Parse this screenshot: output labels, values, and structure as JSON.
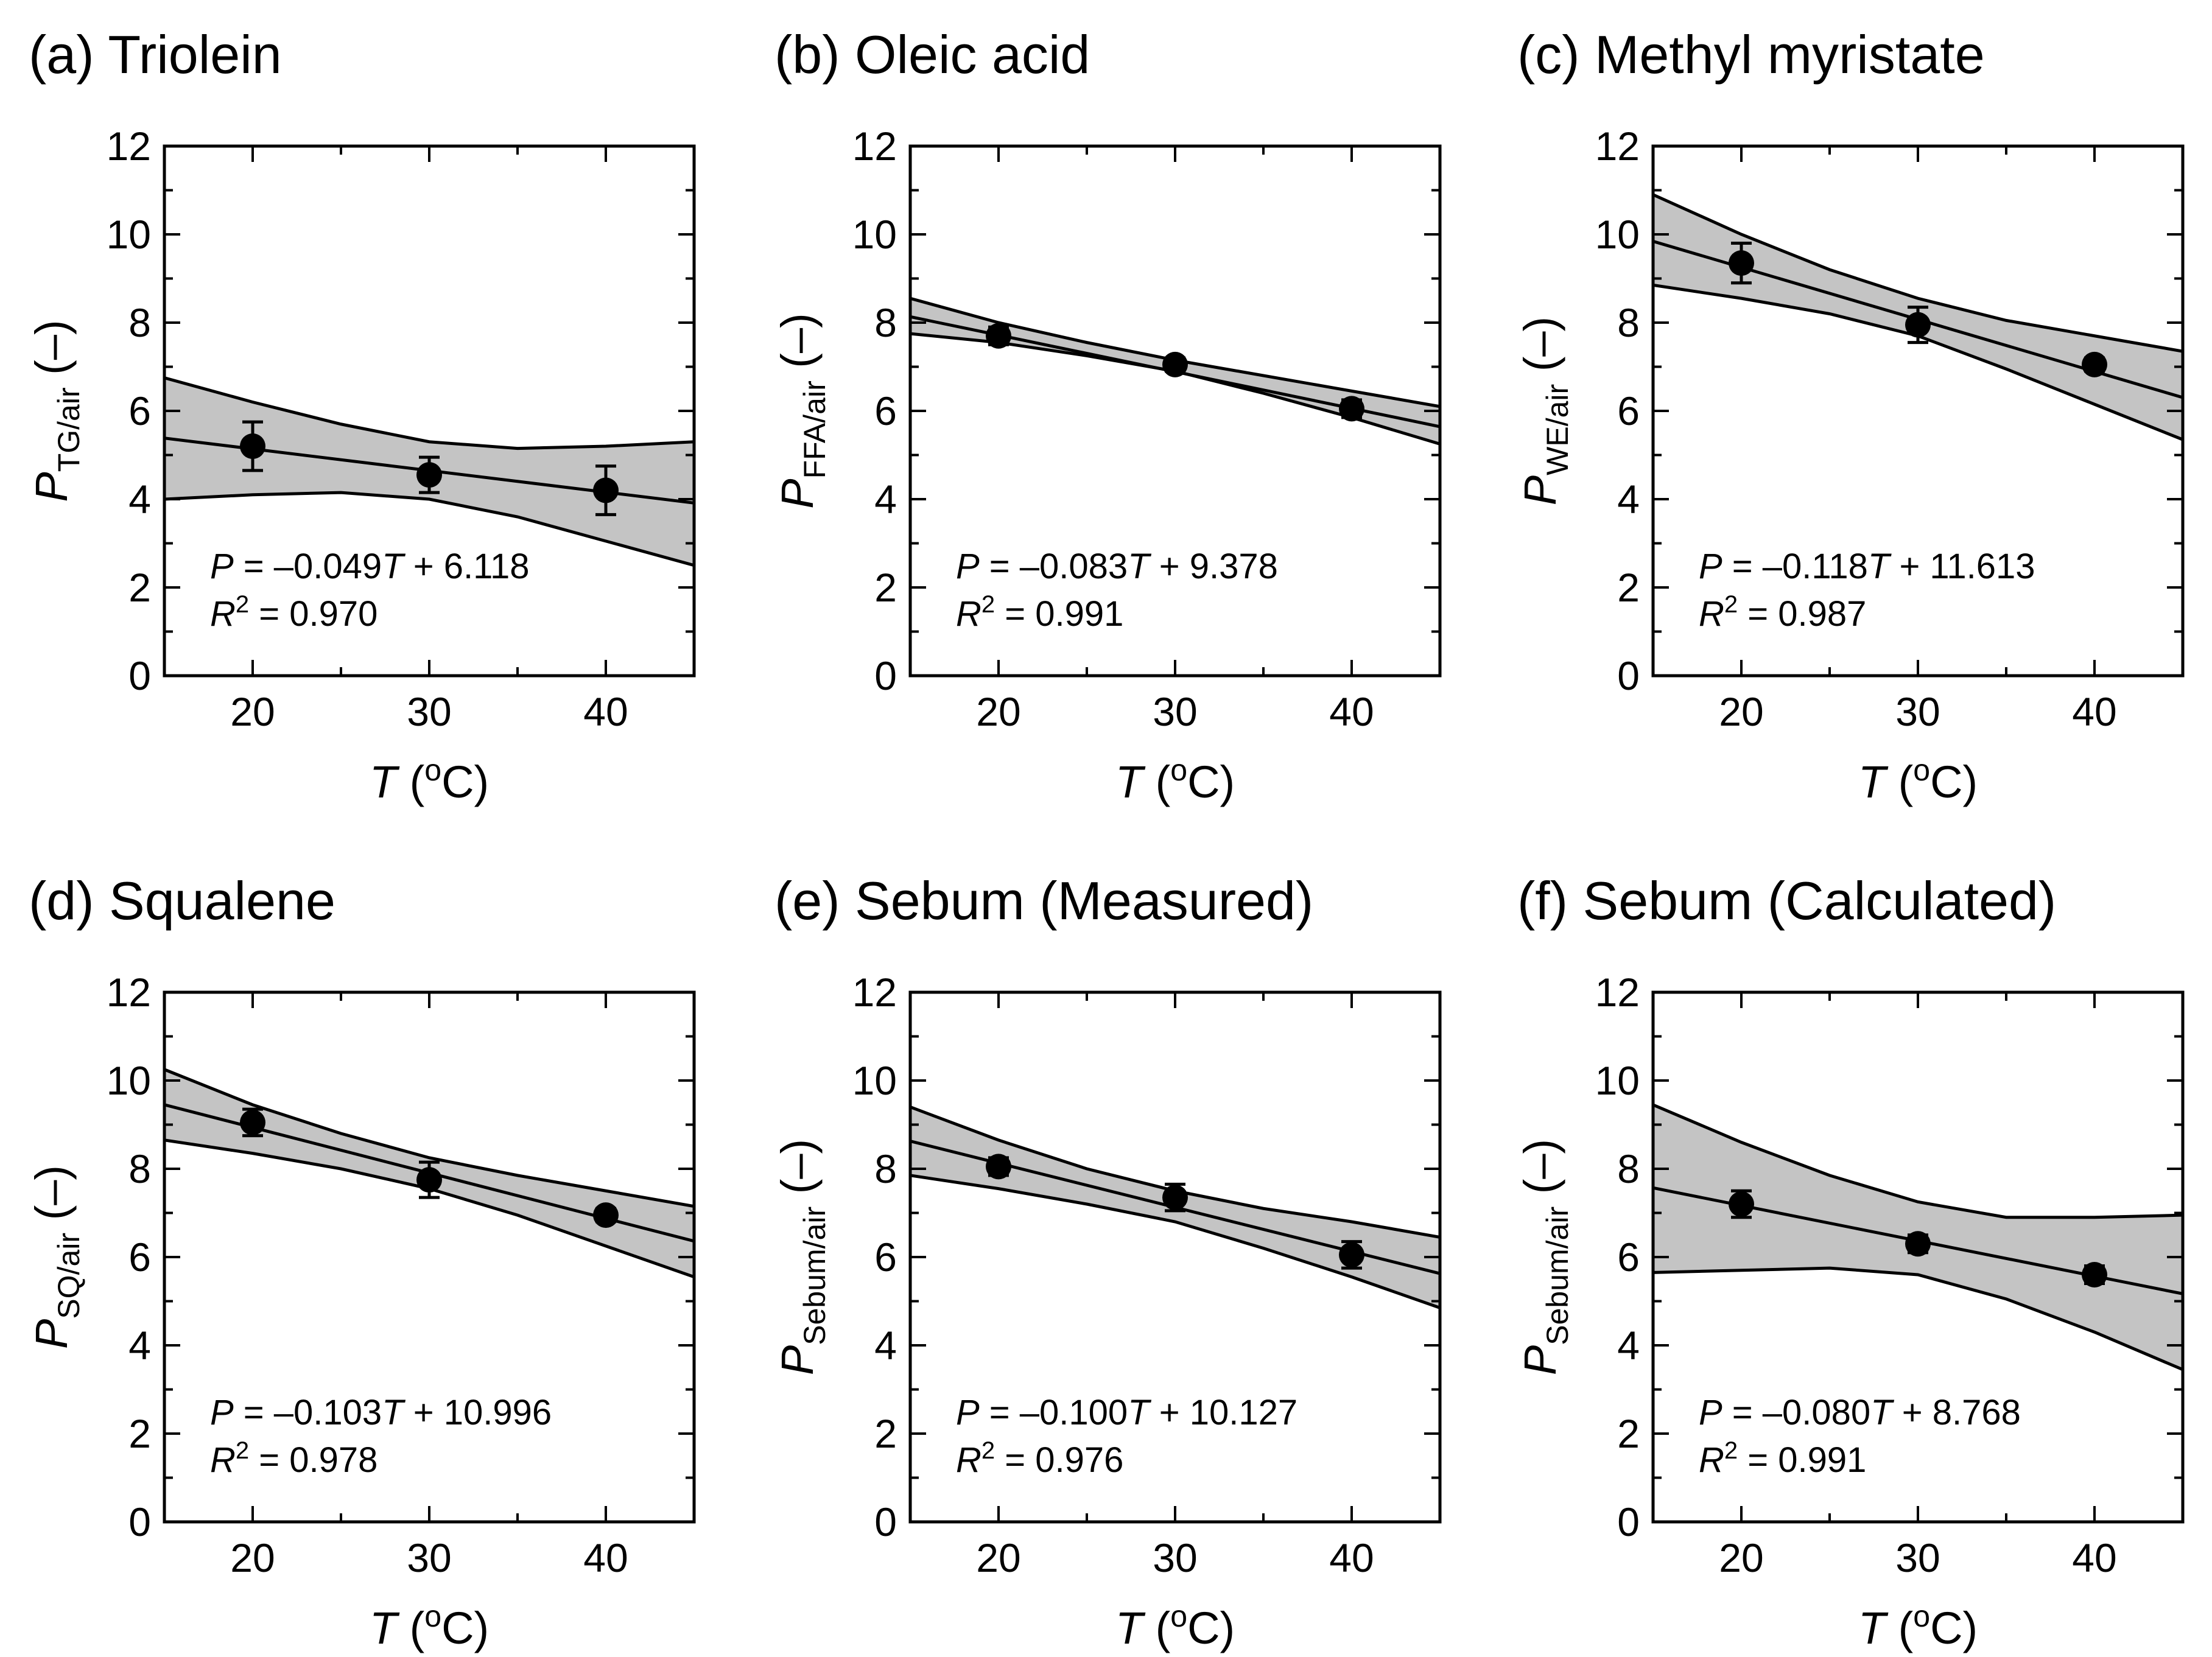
{
  "chart_data": [
    {
      "type": "scatter",
      "title": "(a) Triolein",
      "xlabel": {
        "var": "T",
        "unit_open": " (",
        "sup": "o",
        "unit_close": "C)"
      },
      "ylabel": {
        "var": "P",
        "sub": "TG/air",
        "unit": " (–)"
      },
      "xlim": [
        15,
        45
      ],
      "ylim": [
        0,
        12
      ],
      "xticks": [
        "20",
        "30",
        "40"
      ],
      "yticks": [
        "0",
        "2",
        "4",
        "6",
        "8",
        "10",
        "12"
      ],
      "points": [
        {
          "x": 20,
          "y": 5.2,
          "err": 0.55
        },
        {
          "x": 30,
          "y": 4.55,
          "err": 0.4
        },
        {
          "x": 40,
          "y": 4.2,
          "err": 0.55
        }
      ],
      "fit": {
        "slope": -0.049,
        "intercept": 6.118
      },
      "band_upper": [
        [
          15,
          6.75
        ],
        [
          20,
          6.2
        ],
        [
          25,
          5.7
        ],
        [
          30,
          5.3
        ],
        [
          35,
          5.15
        ],
        [
          40,
          5.2
        ],
        [
          45,
          5.3
        ]
      ],
      "band_lower": [
        [
          15,
          4.0
        ],
        [
          20,
          4.1
        ],
        [
          25,
          4.15
        ],
        [
          30,
          4.0
        ],
        [
          35,
          3.6
        ],
        [
          40,
          3.05
        ],
        [
          45,
          2.5
        ]
      ],
      "equation": {
        "lhs": "P",
        "mid": " = –0.049",
        "var": "T",
        "rest": " + 6.118"
      },
      "r2": {
        "var": "R",
        "sup": "2",
        "rest": " = 0.970"
      }
    },
    {
      "type": "scatter",
      "title": "(b) Oleic acid",
      "xlabel": {
        "var": "T",
        "unit_open": " (",
        "sup": "o",
        "unit_close": "C)"
      },
      "ylabel": {
        "var": "P",
        "sub": "FFA/air",
        "unit": " (–)"
      },
      "xlim": [
        15,
        45
      ],
      "ylim": [
        0,
        12
      ],
      "xticks": [
        "20",
        "30",
        "40"
      ],
      "yticks": [
        "0",
        "2",
        "4",
        "6",
        "8",
        "10",
        "12"
      ],
      "points": [
        {
          "x": 20,
          "y": 7.7,
          "err": 0.2
        },
        {
          "x": 30,
          "y": 7.05,
          "err": 0.15
        },
        {
          "x": 40,
          "y": 6.05,
          "err": 0.2
        }
      ],
      "fit": {
        "slope": -0.083,
        "intercept": 9.378
      },
      "band_upper": [
        [
          15,
          8.55
        ],
        [
          20,
          8.0
        ],
        [
          25,
          7.55
        ],
        [
          30,
          7.15
        ],
        [
          35,
          6.8
        ],
        [
          40,
          6.45
        ],
        [
          45,
          6.1
        ]
      ],
      "band_lower": [
        [
          15,
          7.75
        ],
        [
          20,
          7.55
        ],
        [
          25,
          7.25
        ],
        [
          30,
          6.9
        ],
        [
          35,
          6.4
        ],
        [
          40,
          5.85
        ],
        [
          45,
          5.25
        ]
      ],
      "equation": {
        "lhs": "P",
        "mid": " = –0.083",
        "var": "T",
        "rest": " + 9.378"
      },
      "r2": {
        "var": "R",
        "sup": "2",
        "rest": " = 0.991"
      }
    },
    {
      "type": "scatter",
      "title": "(c) Methyl myristate",
      "xlabel": {
        "var": "T",
        "unit_open": " (",
        "sup": "o",
        "unit_close": "C)"
      },
      "ylabel": {
        "var": "P",
        "sub": "WE/air",
        "unit": " (–)"
      },
      "xlim": [
        15,
        45
      ],
      "ylim": [
        0,
        12
      ],
      "xticks": [
        "20",
        "30",
        "40"
      ],
      "yticks": [
        "0",
        "2",
        "4",
        "6",
        "8",
        "10",
        "12"
      ],
      "points": [
        {
          "x": 20,
          "y": 9.35,
          "err": 0.45
        },
        {
          "x": 30,
          "y": 7.95,
          "err": 0.4
        },
        {
          "x": 40,
          "y": 7.05,
          "err": 0.15
        }
      ],
      "fit": {
        "slope": -0.118,
        "intercept": 11.613
      },
      "band_upper": [
        [
          15,
          10.9
        ],
        [
          20,
          10.0
        ],
        [
          25,
          9.2
        ],
        [
          30,
          8.55
        ],
        [
          35,
          8.05
        ],
        [
          40,
          7.7
        ],
        [
          45,
          7.35
        ]
      ],
      "band_lower": [
        [
          15,
          8.85
        ],
        [
          20,
          8.55
        ],
        [
          25,
          8.2
        ],
        [
          30,
          7.7
        ],
        [
          35,
          6.95
        ],
        [
          40,
          6.15
        ],
        [
          45,
          5.35
        ]
      ],
      "equation": {
        "lhs": "P",
        "mid": " = –0.118",
        "var": "T",
        "rest": " + 11.613"
      },
      "r2": {
        "var": "R",
        "sup": "2",
        "rest": " = 0.987"
      }
    },
    {
      "type": "scatter",
      "title": "(d) Squalene",
      "xlabel": {
        "var": "T",
        "unit_open": " (",
        "sup": "o",
        "unit_close": "C)"
      },
      "ylabel": {
        "var": "P",
        "sub": "SQ/air",
        "unit": " (–)"
      },
      "xlim": [
        15,
        45
      ],
      "ylim": [
        0,
        12
      ],
      "xticks": [
        "20",
        "30",
        "40"
      ],
      "yticks": [
        "0",
        "2",
        "4",
        "6",
        "8",
        "10",
        "12"
      ],
      "points": [
        {
          "x": 20,
          "y": 9.05,
          "err": 0.3
        },
        {
          "x": 30,
          "y": 7.75,
          "err": 0.4
        },
        {
          "x": 40,
          "y": 6.95,
          "err": 0.15
        }
      ],
      "fit": {
        "slope": -0.103,
        "intercept": 10.996
      },
      "band_upper": [
        [
          15,
          10.25
        ],
        [
          20,
          9.45
        ],
        [
          25,
          8.8
        ],
        [
          30,
          8.25
        ],
        [
          35,
          7.85
        ],
        [
          40,
          7.5
        ],
        [
          45,
          7.15
        ]
      ],
      "band_lower": [
        [
          15,
          8.65
        ],
        [
          20,
          8.35
        ],
        [
          25,
          8.0
        ],
        [
          30,
          7.55
        ],
        [
          35,
          6.95
        ],
        [
          40,
          6.25
        ],
        [
          45,
          5.55
        ]
      ],
      "equation": {
        "lhs": "P",
        "mid": " = –0.103",
        "var": "T",
        "rest": " + 10.996"
      },
      "r2": {
        "var": "R",
        "sup": "2",
        "rest": " = 0.978"
      }
    },
    {
      "type": "scatter",
      "title": "(e) Sebum (Measured)",
      "xlabel": {
        "var": "T",
        "unit_open": " (",
        "sup": "o",
        "unit_close": "C)"
      },
      "ylabel": {
        "var": "P",
        "sub": "Sebum/air",
        "unit": " (–)"
      },
      "xlim": [
        15,
        45
      ],
      "ylim": [
        0,
        12
      ],
      "xticks": [
        "20",
        "30",
        "40"
      ],
      "yticks": [
        "0",
        "2",
        "4",
        "6",
        "8",
        "10",
        "12"
      ],
      "points": [
        {
          "x": 20,
          "y": 8.05,
          "err": 0.2
        },
        {
          "x": 30,
          "y": 7.35,
          "err": 0.3
        },
        {
          "x": 40,
          "y": 6.05,
          "err": 0.3
        }
      ],
      "fit": {
        "slope": -0.1,
        "intercept": 10.127
      },
      "band_upper": [
        [
          15,
          9.4
        ],
        [
          20,
          8.65
        ],
        [
          25,
          8.0
        ],
        [
          30,
          7.5
        ],
        [
          35,
          7.1
        ],
        [
          40,
          6.8
        ],
        [
          45,
          6.45
        ]
      ],
      "band_lower": [
        [
          15,
          7.85
        ],
        [
          20,
          7.55
        ],
        [
          25,
          7.2
        ],
        [
          30,
          6.8
        ],
        [
          35,
          6.2
        ],
        [
          40,
          5.55
        ],
        [
          45,
          4.85
        ]
      ],
      "equation": {
        "lhs": "P",
        "mid": " = –0.100",
        "var": "T",
        "rest": " + 10.127"
      },
      "r2": {
        "var": "R",
        "sup": "2",
        "rest": " = 0.976"
      }
    },
    {
      "type": "scatter",
      "title": "(f) Sebum (Calculated)",
      "xlabel": {
        "var": "T",
        "unit_open": " (",
        "sup": "o",
        "unit_close": "C)"
      },
      "ylabel": {
        "var": "P",
        "sub": "Sebum/air",
        "unit": " (–)"
      },
      "xlim": [
        15,
        45
      ],
      "ylim": [
        0,
        12
      ],
      "xticks": [
        "20",
        "30",
        "40"
      ],
      "yticks": [
        "0",
        "2",
        "4",
        "6",
        "8",
        "10",
        "12"
      ],
      "points": [
        {
          "x": 20,
          "y": 7.2,
          "err": 0.3
        },
        {
          "x": 30,
          "y": 6.3,
          "err": 0.2
        },
        {
          "x": 40,
          "y": 5.6,
          "err": 0.2
        }
      ],
      "fit": {
        "slope": -0.08,
        "intercept": 8.768
      },
      "band_upper": [
        [
          15,
          9.45
        ],
        [
          20,
          8.6
        ],
        [
          25,
          7.85
        ],
        [
          30,
          7.25
        ],
        [
          35,
          6.9
        ],
        [
          40,
          6.9
        ],
        [
          45,
          6.95
        ]
      ],
      "band_lower": [
        [
          15,
          5.65
        ],
        [
          20,
          5.7
        ],
        [
          25,
          5.75
        ],
        [
          30,
          5.6
        ],
        [
          35,
          5.05
        ],
        [
          40,
          4.3
        ],
        [
          45,
          3.45
        ]
      ],
      "equation": {
        "lhs": "P",
        "mid": " = –0.080",
        "var": "T",
        "rest": " + 8.768"
      },
      "r2": {
        "var": "R",
        "sup": "2",
        "rest": " = 0.991"
      }
    }
  ]
}
